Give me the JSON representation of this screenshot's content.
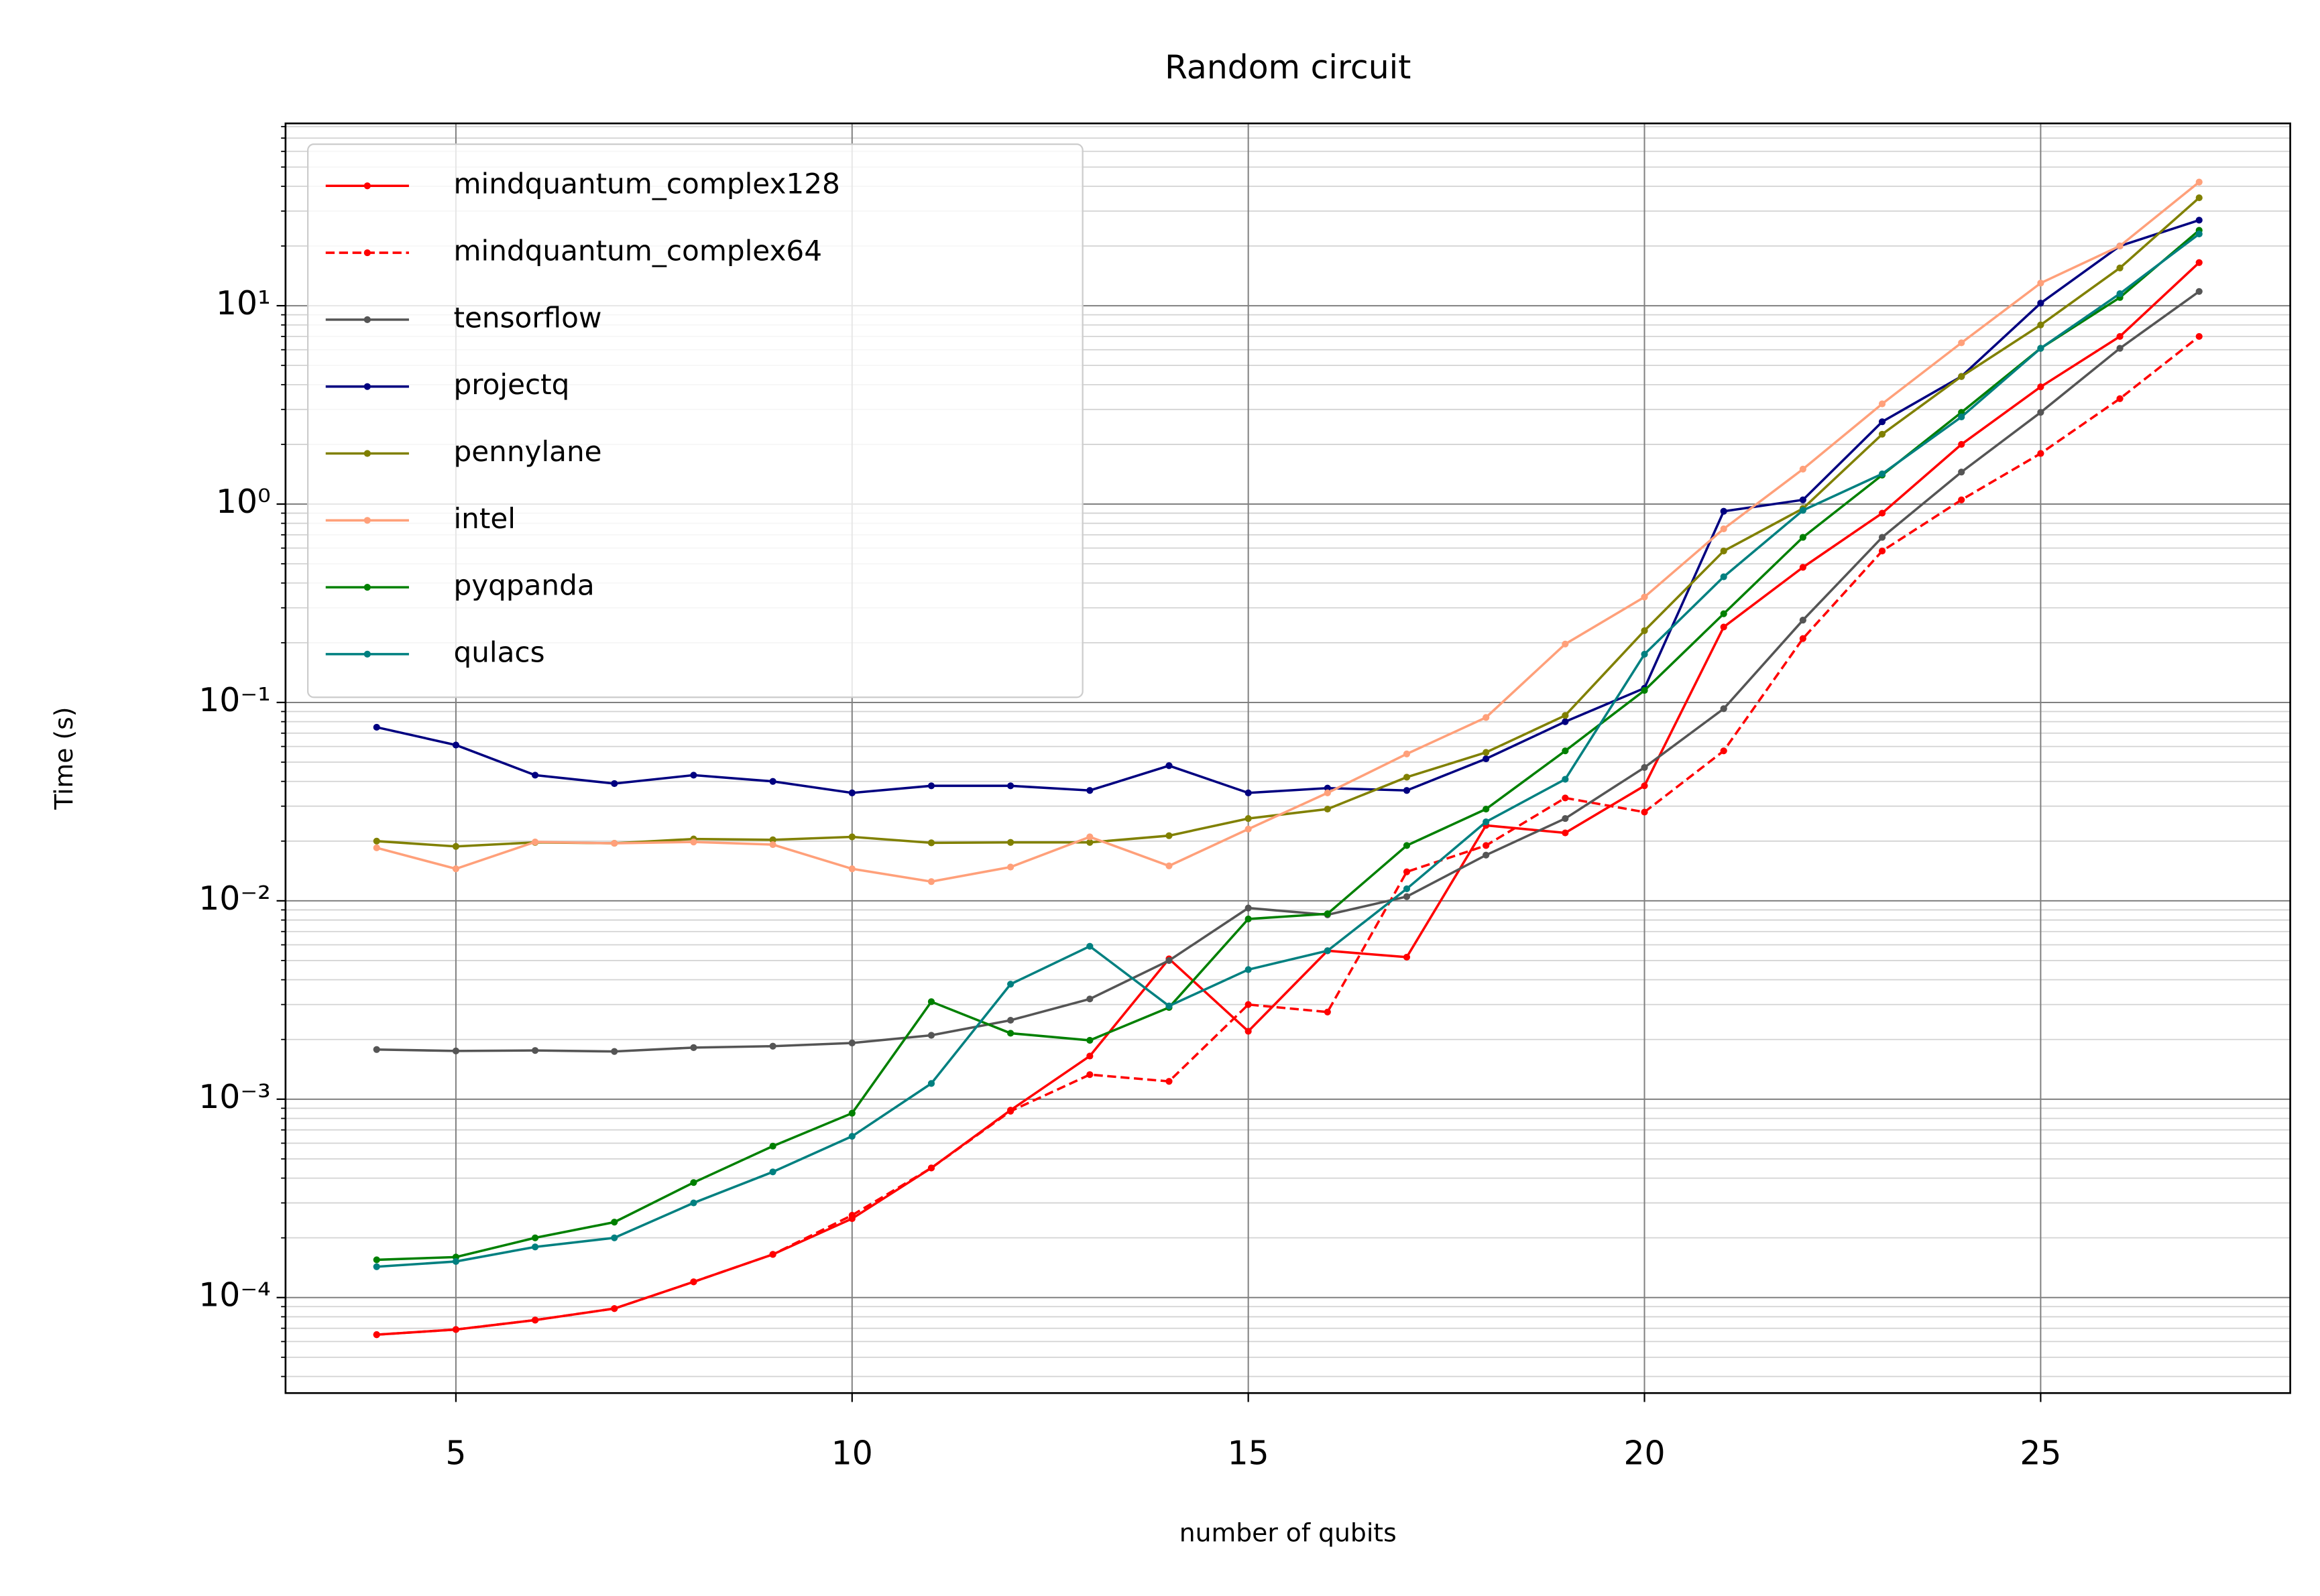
{
  "chart_data": {
    "type": "line",
    "title": "Random circuit",
    "x_label": "number of qubits",
    "y_label": "Time (s)",
    "log_y": true,
    "grid": true,
    "legend": "upper left",
    "x": [
      4,
      5,
      6,
      7,
      8,
      9,
      10,
      11,
      12,
      13,
      14,
      15,
      16,
      17,
      18,
      19,
      20,
      21,
      22,
      23,
      24,
      25,
      26,
      27
    ],
    "xlim": [
      2.85,
      28.15
    ],
    "xticks": [
      5,
      10,
      15,
      20,
      25
    ],
    "ylim": [
      3.3e-05,
      83
    ],
    "yticks": [
      {
        "value": 0.0001,
        "label": "10⁻⁴"
      },
      {
        "value": 0.001,
        "label": "10⁻³"
      },
      {
        "value": 0.01,
        "label": "10⁻²"
      },
      {
        "value": 0.1,
        "label": "10⁻¹"
      },
      {
        "value": 1,
        "label": "10⁰"
      },
      {
        "value": 10,
        "label": "10¹"
      }
    ],
    "minor_yticks": [
      4e-05,
      5e-05,
      6e-05,
      7e-05,
      8e-05,
      9e-05,
      0.0002,
      0.0003,
      0.0004,
      0.0005,
      0.0006,
      0.0007,
      0.0008,
      0.0009,
      0.002,
      0.003,
      0.004,
      0.005,
      0.006,
      0.007,
      0.008,
      0.009,
      0.02,
      0.03,
      0.04,
      0.05,
      0.06,
      0.07,
      0.08,
      0.09,
      0.2,
      0.3,
      0.4,
      0.5,
      0.6,
      0.7,
      0.8,
      0.9,
      2,
      3,
      4,
      5,
      6,
      7,
      8,
      9,
      20,
      30,
      40,
      50,
      60,
      70,
      80
    ],
    "series": [
      {
        "name": "mindquantum_complex128",
        "color": "#ff0000",
        "linestyle": "solid",
        "values": [
          6.5e-05,
          6.9e-05,
          7.7e-05,
          8.8e-05,
          0.00012,
          0.000165,
          0.00025,
          0.00045,
          0.00088,
          0.00165,
          0.0051,
          0.0022,
          0.0056,
          0.0052,
          0.024,
          0.022,
          0.038,
          0.24,
          0.48,
          0.9,
          2.0,
          3.9,
          7.0,
          16.5
        ]
      },
      {
        "name": "mindquantum_complex64",
        "color": "#ff0000",
        "linestyle": "dashed",
        "values": [
          6.5e-05,
          6.9e-05,
          7.7e-05,
          8.8e-05,
          0.00012,
          0.000165,
          0.00026,
          0.00045,
          0.00087,
          0.00133,
          0.00123,
          0.003,
          0.00275,
          0.014,
          0.019,
          0.033,
          0.028,
          0.057,
          0.21,
          0.58,
          1.05,
          1.8,
          3.4,
          7.0
        ]
      },
      {
        "name": "tensorflow",
        "color": "#555555",
        "linestyle": "solid",
        "values": [
          0.00178,
          0.00175,
          0.00176,
          0.00174,
          0.00182,
          0.00185,
          0.00192,
          0.0021,
          0.0025,
          0.0032,
          0.005,
          0.0092,
          0.0085,
          0.0105,
          0.017,
          0.026,
          0.047,
          0.093,
          0.26,
          0.68,
          1.45,
          2.9,
          6.1,
          11.8
        ]
      },
      {
        "name": "projectq",
        "color": "#000080",
        "linestyle": "solid",
        "values": [
          0.075,
          0.061,
          0.043,
          0.039,
          0.043,
          0.04,
          0.035,
          0.038,
          0.038,
          0.036,
          0.048,
          0.035,
          0.037,
          0.036,
          0.052,
          0.08,
          0.118,
          0.92,
          1.05,
          2.6,
          4.4,
          10.3,
          20,
          27
        ]
      },
      {
        "name": "pennylane",
        "color": "#808000",
        "linestyle": "solid",
        "values": [
          0.02,
          0.0188,
          0.0197,
          0.0195,
          0.0205,
          0.0203,
          0.021,
          0.0196,
          0.0197,
          0.0197,
          0.0213,
          0.026,
          0.029,
          0.042,
          0.056,
          0.086,
          0.23,
          0.58,
          0.95,
          2.25,
          4.4,
          8.0,
          15.5,
          35
        ]
      },
      {
        "name": "intel",
        "color": "#ffa07a",
        "linestyle": "solid",
        "values": [
          0.0185,
          0.0145,
          0.0198,
          0.0195,
          0.0198,
          0.0192,
          0.0145,
          0.0125,
          0.0148,
          0.021,
          0.015,
          0.023,
          0.035,
          0.055,
          0.084,
          0.197,
          0.34,
          0.75,
          1.5,
          3.2,
          6.5,
          13,
          20,
          42
        ]
      },
      {
        "name": "pyqpanda",
        "color": "#008000",
        "linestyle": "solid",
        "values": [
          0.000155,
          0.00016,
          0.0002,
          0.00024,
          0.00038,
          0.00058,
          0.00085,
          0.0031,
          0.00215,
          0.00198,
          0.0029,
          0.0081,
          0.0086,
          0.019,
          0.029,
          0.057,
          0.115,
          0.28,
          0.68,
          1.4,
          2.9,
          6.1,
          11,
          24
        ]
      },
      {
        "name": "qulacs",
        "color": "#008080",
        "linestyle": "solid",
        "values": [
          0.000143,
          0.000152,
          0.00018,
          0.0002,
          0.0003,
          0.00043,
          0.00065,
          0.0012,
          0.0038,
          0.0059,
          0.00295,
          0.0045,
          0.0056,
          0.0115,
          0.025,
          0.041,
          0.175,
          0.43,
          0.93,
          1.42,
          2.75,
          6.1,
          11.5,
          23
        ]
      }
    ]
  }
}
